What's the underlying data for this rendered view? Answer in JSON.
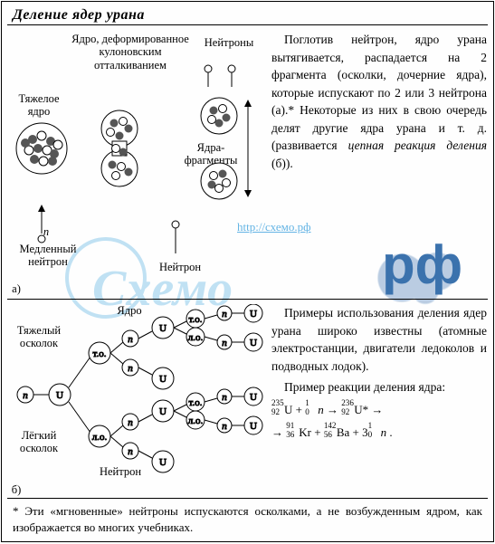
{
  "title": "Деление ядер урана",
  "diagram_a": {
    "labels": {
      "deformed": "Ядро, деформированное\nкулоновским\nотталкиванием",
      "neutrons": "Нейтроны",
      "heavy_nucleus": "Тяжелое\nядро",
      "fragments": "Ядра-\nфрагменты",
      "slow_neutron": "Медленный\nнейтрон",
      "neutron": "Нейтрон",
      "n_italic": "n",
      "panel_letter": "а)"
    },
    "colors": {
      "particle_light": "#ffffff",
      "particle_dark": "#555555",
      "outline": "#000000"
    }
  },
  "paragraph_a": {
    "text": "Поглотив нейтрон, ядро урана вытягивается, распадается на 2 фрагмента (осколки, дочерние ядра), которые испускают по 2 или 3 нейтрона (а).* Некоторые из них в свою очередь делят другие ядра урана и т. д. (развивается ",
    "italic": "цепная реакция деления",
    "tail": " (б))."
  },
  "diagram_b": {
    "labels": {
      "nucleus": "Ядро",
      "heavy_fragment": "Тяжелый\nосколок",
      "light_fragment": "Лёгкий\nосколок",
      "neutron": "Нейтрон",
      "panel_letter": "б)"
    },
    "node_labels": {
      "n": "n",
      "U": "U",
      "to": "т.о.",
      "lo": "л.о."
    },
    "colors": {
      "node_fill": "#ffffff",
      "stroke": "#000000"
    }
  },
  "paragraph_b": {
    "p1": "Примеры использования деления ядер урана широко известны (атомные электростанции, двигатели ледоколов и подводных лодок).",
    "p2_lead": "Пример реакции деления ядра:"
  },
  "equation": {
    "U235": {
      "mass": "235",
      "z": "92",
      "sym": "U"
    },
    "n0": {
      "mass": "1",
      "z": "0",
      "sym": "n"
    },
    "U236": {
      "mass": "236",
      "z": "92",
      "sym": "U*"
    },
    "Kr": {
      "mass": "91",
      "z": "36",
      "sym": "Kr"
    },
    "Ba": {
      "mass": "142",
      "z": "56",
      "sym": "Ba"
    },
    "coeff_n": "3",
    "arrow": "→",
    "plus": "+"
  },
  "footnote": "* Эти «мгновенные» нейтроны испускаются осколками, а не возбужденным ядром, как изображается во многих учебниках.",
  "watermark": {
    "brand": "Схемо",
    "link": "http://схемо.рф",
    "tld": "рф"
  }
}
